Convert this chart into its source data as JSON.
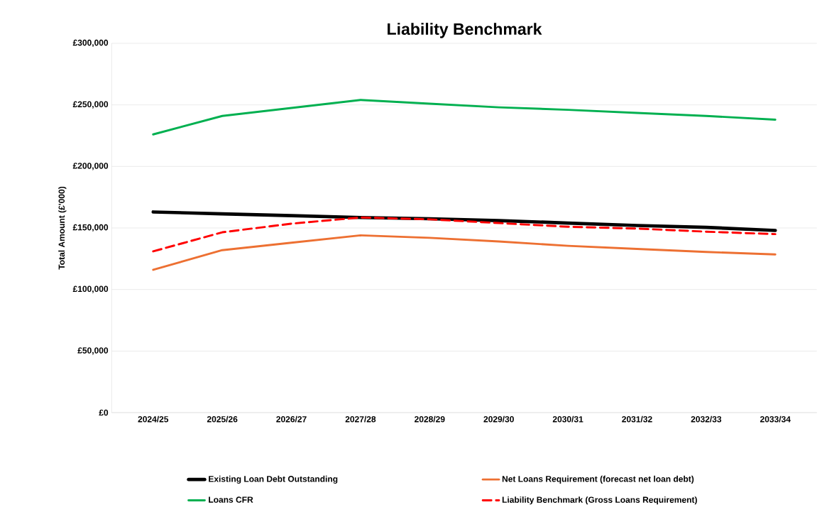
{
  "chart_data": {
    "type": "line",
    "title": "Liability Benchmark",
    "ylabel": "Total Amount (£'000)",
    "categories": [
      "2024/25",
      "2025/26",
      "2026/27",
      "2027/28",
      "2028/29",
      "2029/30",
      "2030/31",
      "2031/32",
      "2032/33",
      "2033/34"
    ],
    "series": [
      {
        "name": "Existing Loan Debt Outstanding",
        "color": "#000000",
        "line_style": "solid",
        "values": [
          163000,
          161500,
          160000,
          158500,
          157500,
          156000,
          154000,
          152000,
          150500,
          148000
        ]
      },
      {
        "name": "Net Loans Requirement (forecast net loan debt)",
        "color": "#ed7032",
        "line_style": "solid",
        "values": [
          116000,
          132000,
          138000,
          144000,
          142000,
          139000,
          135500,
          133000,
          130500,
          128500
        ]
      },
      {
        "name": "Loans CFR",
        "color": "#00b050",
        "line_style": "solid",
        "values": [
          226000,
          241000,
          247500,
          254000,
          251000,
          248000,
          246000,
          243500,
          241000,
          238000
        ]
      },
      {
        "name": "Liability Benchmark (Gross Loans Requirement)",
        "color": "#ff0000",
        "line_style": "dashed",
        "values": [
          131000,
          146500,
          153500,
          158500,
          157000,
          154000,
          151000,
          149500,
          147000,
          145000
        ]
      }
    ],
    "ylim": [
      0,
      300000
    ],
    "yticks": [
      {
        "value": 0,
        "label": "£0"
      },
      {
        "value": 50000,
        "label": "£50,000"
      },
      {
        "value": 100000,
        "label": "£100,000"
      },
      {
        "value": 150000,
        "label": "£150,000"
      },
      {
        "value": 200000,
        "label": "£200,000"
      },
      {
        "value": 250000,
        "label": "£250,000"
      },
      {
        "value": 300000,
        "label": "£300,000"
      }
    ],
    "grid": "y",
    "legend": "bottom",
    "marker": "none"
  }
}
